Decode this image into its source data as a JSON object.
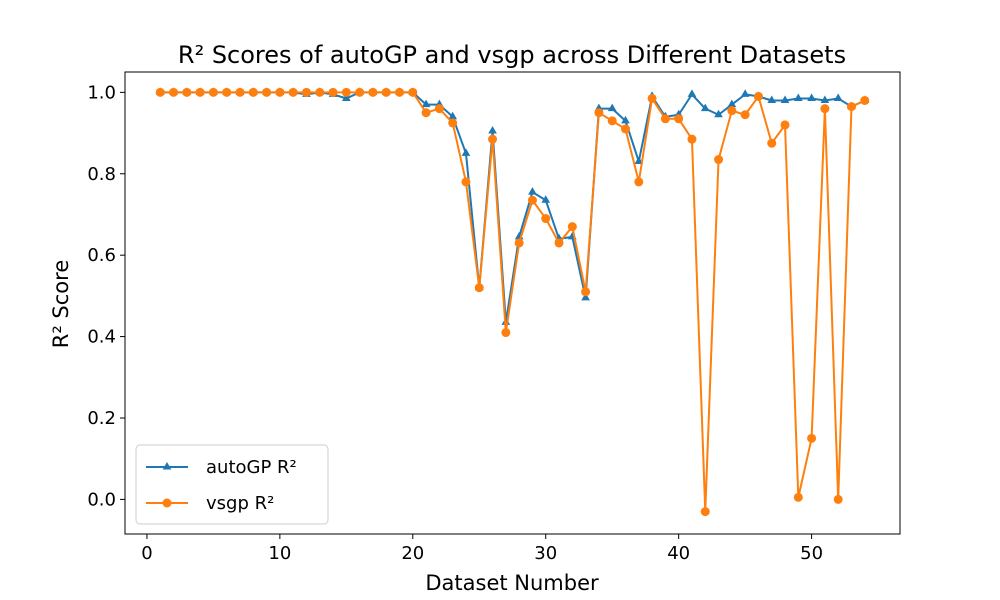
{
  "chart_data": {
    "type": "line",
    "title": "R² Scores of autoGP and vsgp across Different Datasets",
    "xlabel": "Dataset Number",
    "ylabel": "R² Score",
    "xlim": [
      -1.65,
      56.65
    ],
    "ylim": [
      -0.085,
      1.05
    ],
    "xticks": [
      0,
      10,
      20,
      30,
      40,
      50
    ],
    "yticks": [
      0.0,
      0.2,
      0.4,
      0.6,
      0.8,
      1.0
    ],
    "xtick_labels": [
      "0",
      "10",
      "20",
      "30",
      "40",
      "50"
    ],
    "ytick_labels": [
      "0.0",
      "0.2",
      "0.4",
      "0.6",
      "0.8",
      "1.0"
    ],
    "grid": false,
    "legend_position": "lower-left",
    "x": [
      1,
      2,
      3,
      4,
      5,
      6,
      7,
      8,
      9,
      10,
      11,
      12,
      13,
      14,
      15,
      16,
      17,
      18,
      19,
      20,
      21,
      22,
      23,
      24,
      25,
      26,
      27,
      28,
      29,
      30,
      31,
      32,
      33,
      34,
      35,
      36,
      37,
      38,
      39,
      40,
      41,
      42,
      43,
      44,
      45,
      46,
      47,
      48,
      49,
      50,
      51,
      52,
      53,
      54
    ],
    "series": [
      {
        "name": "autoGP R²",
        "color": "#1f77b4",
        "marker": "triangle",
        "values": [
          1.0,
          1.0,
          1.0,
          1.0,
          1.0,
          1.0,
          1.0,
          1.0,
          1.0,
          1.0,
          1.0,
          0.995,
          1.0,
          0.995,
          0.985,
          1.0,
          1.0,
          1.0,
          1.0,
          1.0,
          0.97,
          0.97,
          0.94,
          0.85,
          0.52,
          0.905,
          0.435,
          0.645,
          0.755,
          0.735,
          0.64,
          0.645,
          0.495,
          0.96,
          0.96,
          0.93,
          0.83,
          0.99,
          0.94,
          0.945,
          0.995,
          0.96,
          0.945,
          0.97,
          0.995,
          0.99,
          0.98,
          0.98,
          0.985,
          0.985,
          0.98,
          0.985,
          0.965,
          0.98
        ]
      },
      {
        "name": "vsgp R²",
        "color": "#ff7f0e",
        "marker": "circle",
        "values": [
          1.0,
          1.0,
          1.0,
          1.0,
          1.0,
          1.0,
          1.0,
          1.0,
          1.0,
          1.0,
          1.0,
          1.0,
          1.0,
          1.0,
          1.0,
          1.0,
          1.0,
          1.0,
          1.0,
          1.0,
          0.95,
          0.96,
          0.925,
          0.78,
          0.52,
          0.885,
          0.41,
          0.63,
          0.735,
          0.69,
          0.63,
          0.67,
          0.51,
          0.95,
          0.93,
          0.91,
          0.78,
          0.985,
          0.935,
          0.935,
          0.885,
          -0.03,
          0.835,
          0.955,
          0.945,
          0.99,
          0.875,
          0.92,
          0.005,
          0.15,
          0.96,
          0.0,
          0.965,
          0.98
        ]
      }
    ]
  }
}
